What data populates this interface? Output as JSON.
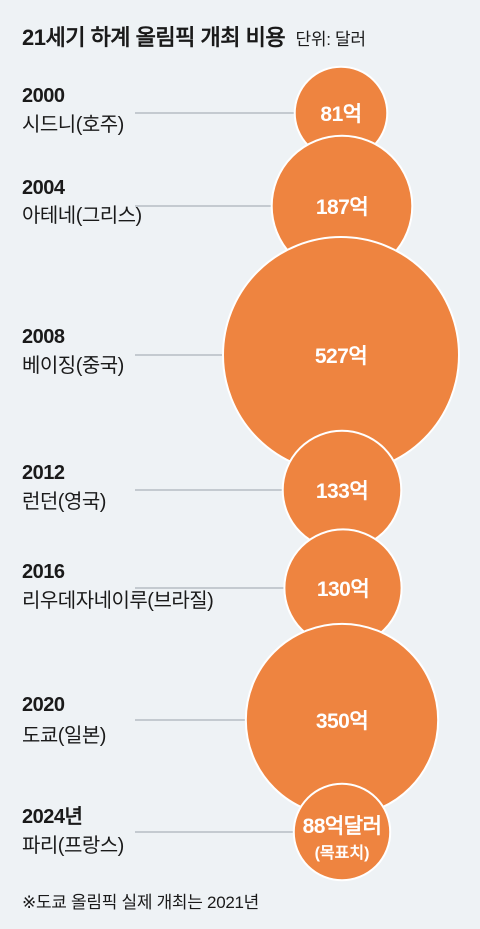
{
  "title": "21세기 하계 올림픽 개최 비용",
  "unit_label": "단위: 달러",
  "footnote": "※도쿄 올림픽 실제 개최는 2021년",
  "colors": {
    "bubble": "#ee8440",
    "connector": "#9aa3ab",
    "background": "#eef2f5"
  },
  "chart_data": {
    "type": "bubble",
    "unit": "억 달러",
    "series": [
      {
        "year": "2000",
        "city": "시드니(호주)",
        "value": 81,
        "label": "81억"
      },
      {
        "year": "2004",
        "city": "아테네(그리스)",
        "value": 187,
        "label": "187억"
      },
      {
        "year": "2008",
        "city": "베이징(중국)",
        "value": 527,
        "label": "527억"
      },
      {
        "year": "2012",
        "city": "런던(영국)",
        "value": 133,
        "label": "133억"
      },
      {
        "year": "2016",
        "city": "리우데자네이루(브라질)",
        "value": 130,
        "label": "130억"
      },
      {
        "year": "2020",
        "city": "도쿄(일본)",
        "value": 350,
        "label": "350억"
      },
      {
        "year": "2024년",
        "city": "파리(프랑스)",
        "value": 88,
        "label": "88억달러",
        "sublabel": "(목표치)"
      }
    ]
  }
}
